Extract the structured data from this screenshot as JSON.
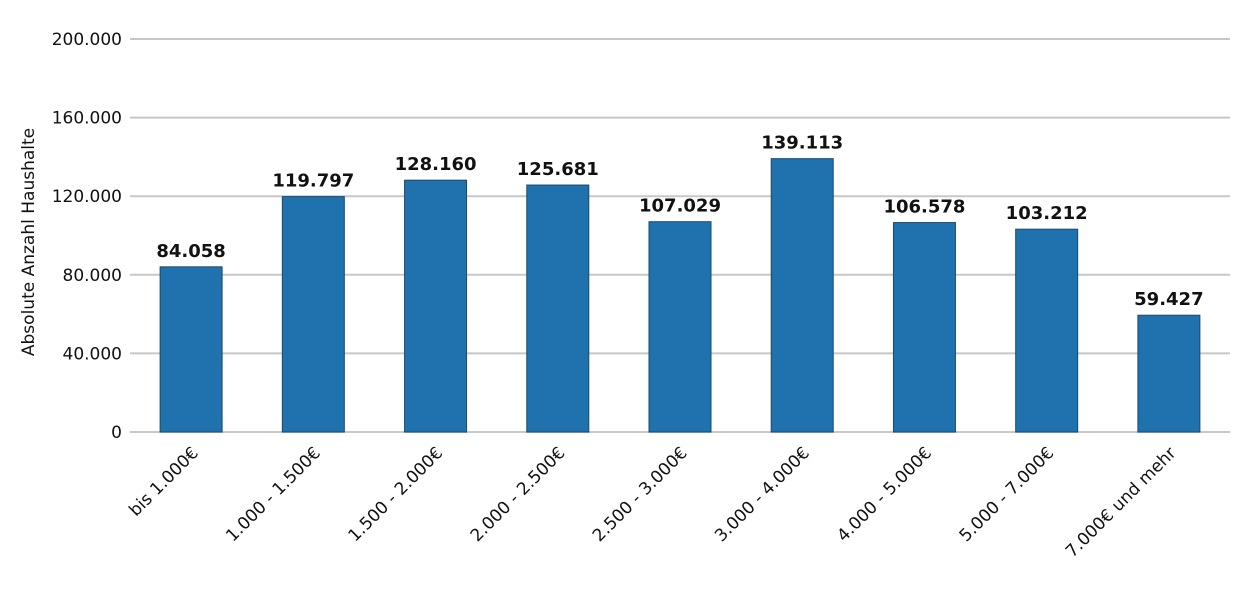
{
  "chart_data": {
    "type": "bar",
    "title": "",
    "xlabel": "",
    "ylabel": "Absolute Anzahl Haushalte",
    "categories": [
      "bis 1.000€",
      "1.000 - 1.500€",
      "1.500 - 2.000€",
      "2.000 - 2.500€",
      "2.500 - 3.000€",
      "3.000 - 4.000€",
      "4.000 - 5.000€",
      "5.000 - 7.000€",
      "7.000€ und mehr"
    ],
    "values": [
      84058,
      119797,
      128160,
      125681,
      107029,
      139113,
      106578,
      103212,
      59427
    ],
    "data_labels": [
      "84.058",
      "119.797",
      "128.160",
      "125.681",
      "107.029",
      "139.113",
      "106.578",
      "103.212",
      "59.427"
    ],
    "y_ticks": [
      0,
      40000,
      80000,
      120000,
      160000,
      200000
    ],
    "y_tick_labels": [
      "0",
      "40.000",
      "80.000",
      "120.000",
      "160.000",
      "200.000"
    ],
    "ylim": [
      0,
      200000
    ],
    "grid": true,
    "legend": "none",
    "bar_color": "#1f72ad"
  }
}
